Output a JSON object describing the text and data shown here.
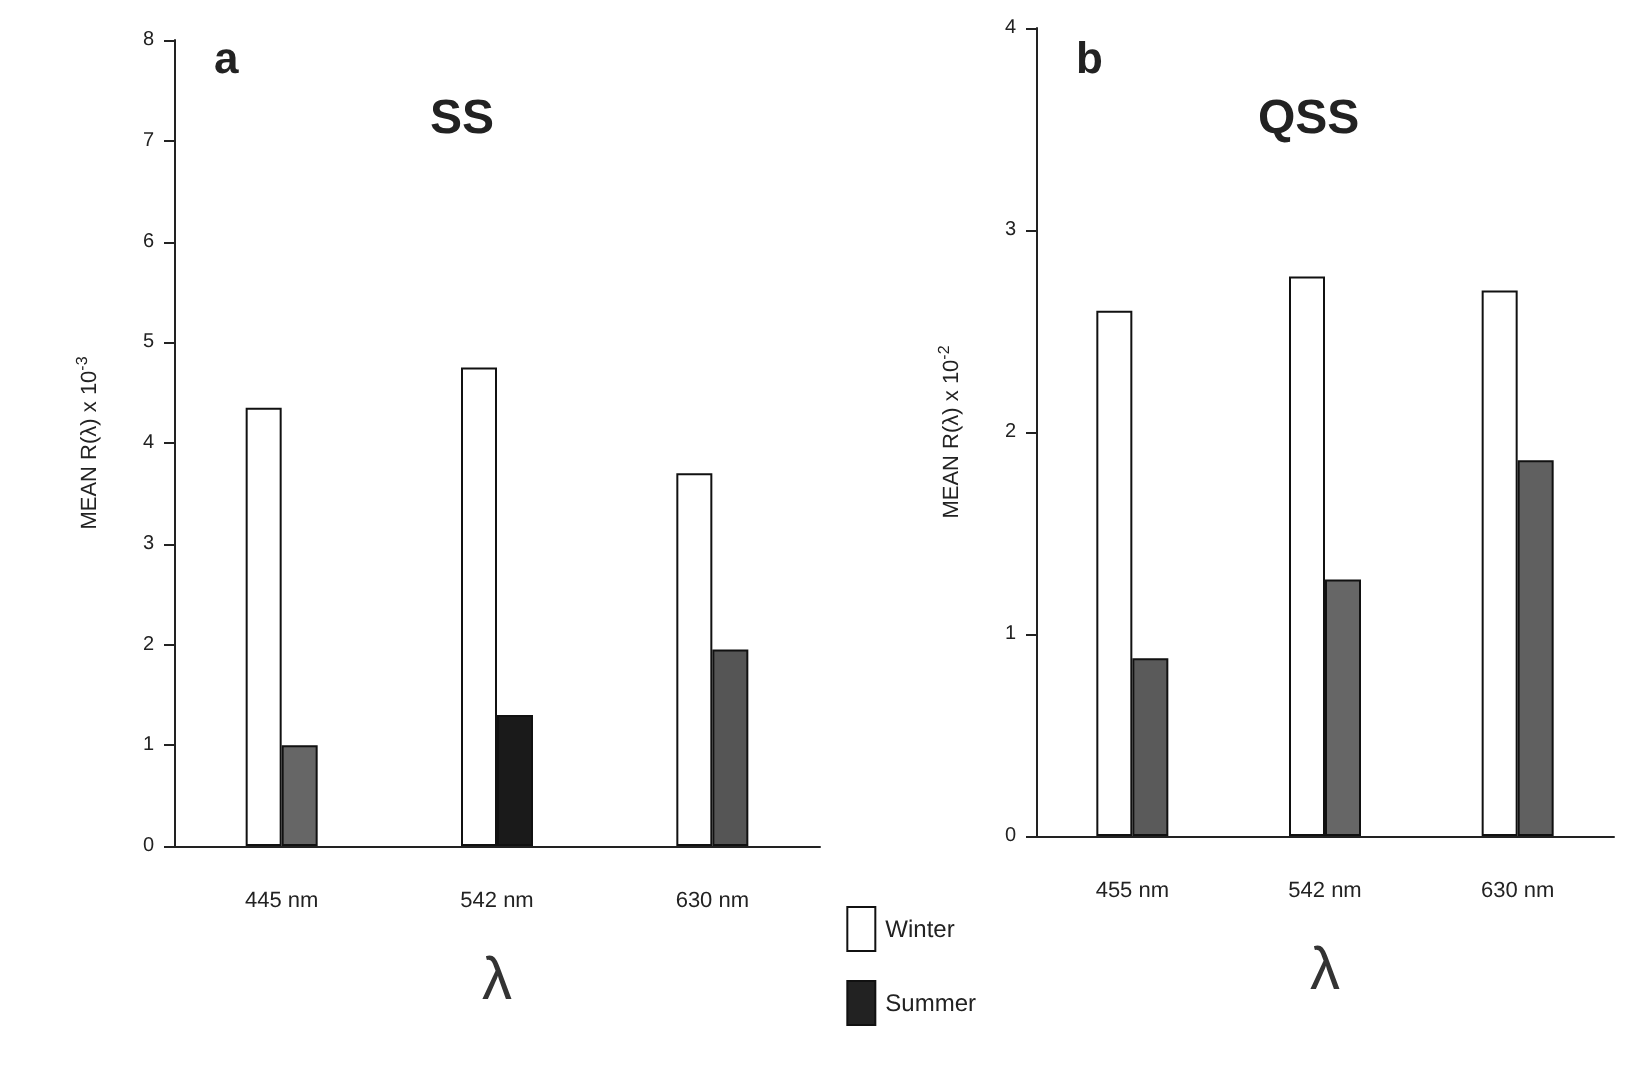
{
  "chart_data": [
    {
      "type": "bar",
      "title": "SS",
      "annotations": [
        "a"
      ],
      "xlabel": "λ",
      "ylabel": "MEAN R(λ) x 10$^{-3}$",
      "categories": [
        "445 nm",
        "542 nm",
        "630 nm"
      ],
      "ylim": [
        0,
        8
      ],
      "yticks": [
        0,
        1,
        2,
        3,
        4,
        5,
        6,
        7,
        8
      ],
      "grid": false,
      "legend": "bottom right",
      "series": [
        {
          "name": "Winter",
          "color": "#ffffff",
          "values": [
            4.35,
            4.75,
            3.7
          ]
        },
        {
          "name": "Summer",
          "color": "#222222",
          "colors": [
            "#666666",
            "#1a1a1a",
            "#555555"
          ],
          "values": [
            1.0,
            1.3,
            1.95
          ]
        }
      ]
    },
    {
      "type": "bar",
      "title": "QSS",
      "annotations": [
        "b"
      ],
      "xlabel": "λ",
      "ylabel": "MEAN R(λ) x 10$^{-2}$",
      "categories": [
        "455 nm",
        "542 nm",
        "630 nm"
      ],
      "ylim": [
        0,
        4
      ],
      "yticks": [
        0,
        1,
        2,
        3,
        4
      ],
      "grid": false,
      "series": [
        {
          "color": "#ffffff",
          "values": [
            2.6,
            2.77,
            2.7
          ]
        },
        {
          "color": "#5a5a5a",
          "colors": [
            "#5a5a5a",
            "#666666",
            "#606060"
          ],
          "values": [
            0.88,
            1.27,
            1.86
          ]
        }
      ]
    }
  ]
}
